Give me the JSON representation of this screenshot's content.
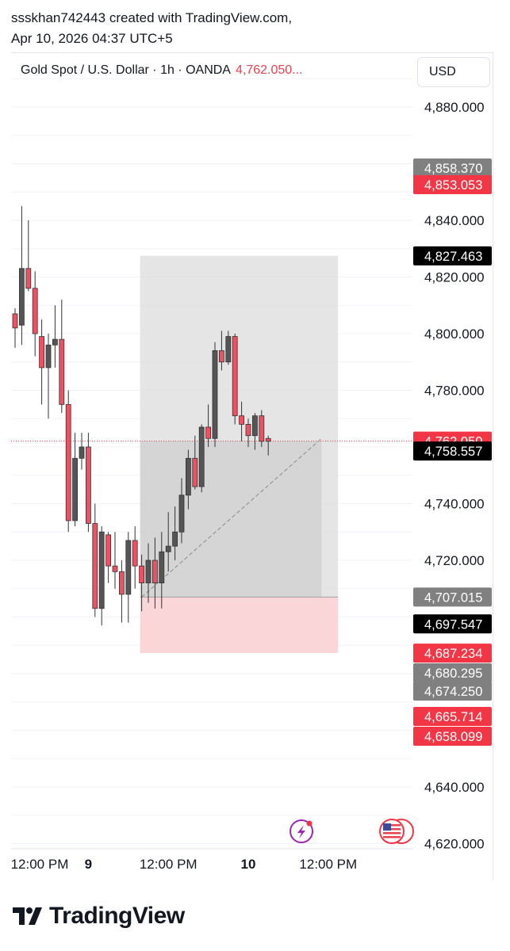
{
  "attribution": {
    "line1": "ssskhan742443 created with TradingView.com,",
    "line2": "Apr 10, 2026 04:37 UTC+5"
  },
  "legend": {
    "symbol": "Gold Spot / U.S. Dollar · 1h · OANDA",
    "price": "4,762.050..."
  },
  "currency_button": "USD",
  "brand": "TradingView",
  "colors": {
    "up": "#555555",
    "down": "#ef5062",
    "accent_red": "#f23645",
    "label_grey": "#808080",
    "label_black": "#000000",
    "profit_zone": "#dcdcdc",
    "loss_zone": "#fbd2d5"
  },
  "chart_data": {
    "type": "candlestick",
    "symbol": "Gold Spot / U.S. Dollar",
    "interval": "1h",
    "exchange": "OANDA",
    "ylim": [
      4613,
      4907
    ],
    "y_ticks": [
      "4,880.000",
      "4,840.000",
      "4,820.000",
      "4,800.000",
      "4,780.000",
      "4,740.000",
      "4,720.000",
      "4,640.000",
      "4,620.000"
    ],
    "y_tick_values": [
      4880,
      4840,
      4820,
      4800,
      4780,
      4740,
      4720,
      4640,
      4620
    ],
    "x_ticks": [
      {
        "label": "12:00 PM",
        "bold": false,
        "index": -1
      },
      {
        "label": "9",
        "bold": true,
        "index": 11
      },
      {
        "label": "12:00 PM",
        "bold": false,
        "index": 23
      },
      {
        "label": "10",
        "bold": true,
        "index": 35
      },
      {
        "label": "12:00 PM",
        "bold": false,
        "index": 47
      }
    ],
    "candles": [
      {
        "o": 4807,
        "h": 4809,
        "l": 4795,
        "c": 4802
      },
      {
        "o": 4803,
        "h": 4845,
        "l": 4796,
        "c": 4823
      },
      {
        "o": 4823,
        "h": 4840,
        "l": 4815,
        "c": 4816
      },
      {
        "o": 4816,
        "h": 4822,
        "l": 4792,
        "c": 4800
      },
      {
        "o": 4799,
        "h": 4805,
        "l": 4775,
        "c": 4788
      },
      {
        "o": 4788,
        "h": 4800,
        "l": 4770,
        "c": 4796
      },
      {
        "o": 4796,
        "h": 4810,
        "l": 4788,
        "c": 4798
      },
      {
        "o": 4798,
        "h": 4812,
        "l": 4772,
        "c": 4775
      },
      {
        "o": 4775,
        "h": 4780,
        "l": 4730,
        "c": 4734
      },
      {
        "o": 4734,
        "h": 4765,
        "l": 4732,
        "c": 4756
      },
      {
        "o": 4756,
        "h": 4765,
        "l": 4752,
        "c": 4760
      },
      {
        "o": 4760,
        "h": 4765,
        "l": 4730,
        "c": 4733
      },
      {
        "o": 4733,
        "h": 4740,
        "l": 4700,
        "c": 4703
      },
      {
        "o": 4703,
        "h": 4732,
        "l": 4697,
        "c": 4730
      },
      {
        "o": 4729,
        "h": 4730,
        "l": 4712,
        "c": 4718
      },
      {
        "o": 4718,
        "h": 4730,
        "l": 4710,
        "c": 4716
      },
      {
        "o": 4716,
        "h": 4720,
        "l": 4698,
        "c": 4708
      },
      {
        "o": 4708,
        "h": 4730,
        "l": 4698,
        "c": 4727
      },
      {
        "o": 4727,
        "h": 4732,
        "l": 4710,
        "c": 4718
      },
      {
        "o": 4718,
        "h": 4722,
        "l": 4702,
        "c": 4712
      },
      {
        "o": 4712,
        "h": 4726,
        "l": 4705,
        "c": 4720
      },
      {
        "o": 4720,
        "h": 4728,
        "l": 4703,
        "c": 4712
      },
      {
        "o": 4712,
        "h": 4730,
        "l": 4703,
        "c": 4723
      },
      {
        "o": 4723,
        "h": 4737,
        "l": 4716,
        "c": 4725
      },
      {
        "o": 4725,
        "h": 4739,
        "l": 4720,
        "c": 4730
      },
      {
        "o": 4730,
        "h": 4749,
        "l": 4726,
        "c": 4743
      },
      {
        "o": 4743,
        "h": 4759,
        "l": 4738,
        "c": 4756
      },
      {
        "o": 4756,
        "h": 4764,
        "l": 4745,
        "c": 4746
      },
      {
        "o": 4746,
        "h": 4768,
        "l": 4744,
        "c": 4767
      },
      {
        "o": 4767,
        "h": 4775,
        "l": 4760,
        "c": 4763
      },
      {
        "o": 4763,
        "h": 4797,
        "l": 4760,
        "c": 4794
      },
      {
        "o": 4794,
        "h": 4801,
        "l": 4787,
        "c": 4790
      },
      {
        "o": 4790,
        "h": 4801,
        "l": 4789,
        "c": 4799
      },
      {
        "o": 4799,
        "h": 4800,
        "l": 4768,
        "c": 4771
      },
      {
        "o": 4771,
        "h": 4776,
        "l": 4762,
        "c": 4768
      },
      {
        "o": 4768,
        "h": 4770,
        "l": 4760,
        "c": 4764
      },
      {
        "o": 4764,
        "h": 4772,
        "l": 4759,
        "c": 4771
      },
      {
        "o": 4771,
        "h": 4773,
        "l": 4760,
        "c": 4762
      },
      {
        "o": 4763,
        "h": 4764,
        "l": 4757,
        "c": 4762
      }
    ],
    "position_tool": {
      "entry": 4707.015,
      "target": 4827.463,
      "stop": 4687.234,
      "start_index": 19,
      "end_index": 48
    },
    "trend_line": {
      "from_index": 19,
      "from_price": 4707,
      "to_index": 46,
      "to_price": 4763
    },
    "current_price": 4762.05,
    "price_labels": [
      {
        "text": "4,858.370",
        "kind": "grey",
        "value": 4858.37
      },
      {
        "text": "4,853.053",
        "kind": "red",
        "value": 4853.053
      },
      {
        "text": "4,827.463",
        "kind": "black",
        "value": 4827.463
      },
      {
        "text": "4,762.050",
        "kind": "red",
        "value": 4762.05
      },
      {
        "text": "4,758.557",
        "kind": "black",
        "value": 4758.557
      },
      {
        "text": "4,707.015",
        "kind": "grey",
        "value": 4707.015
      },
      {
        "text": "4,697.547",
        "kind": "black",
        "value": 4697.547
      },
      {
        "text": "4,687.234",
        "kind": "red",
        "value": 4687.234
      },
      {
        "text": "4,680.295",
        "kind": "grey",
        "value": 4680.295
      },
      {
        "text": "4,674.250",
        "kind": "grey",
        "value": 4674.25
      },
      {
        "text": "4,665.714",
        "kind": "red",
        "value": 4665.714
      },
      {
        "text": "4,658.099",
        "kind": "red",
        "value": 4658.099
      }
    ],
    "grid": true,
    "event_icons": [
      "lightning-icon",
      "us-flag-icon"
    ]
  }
}
